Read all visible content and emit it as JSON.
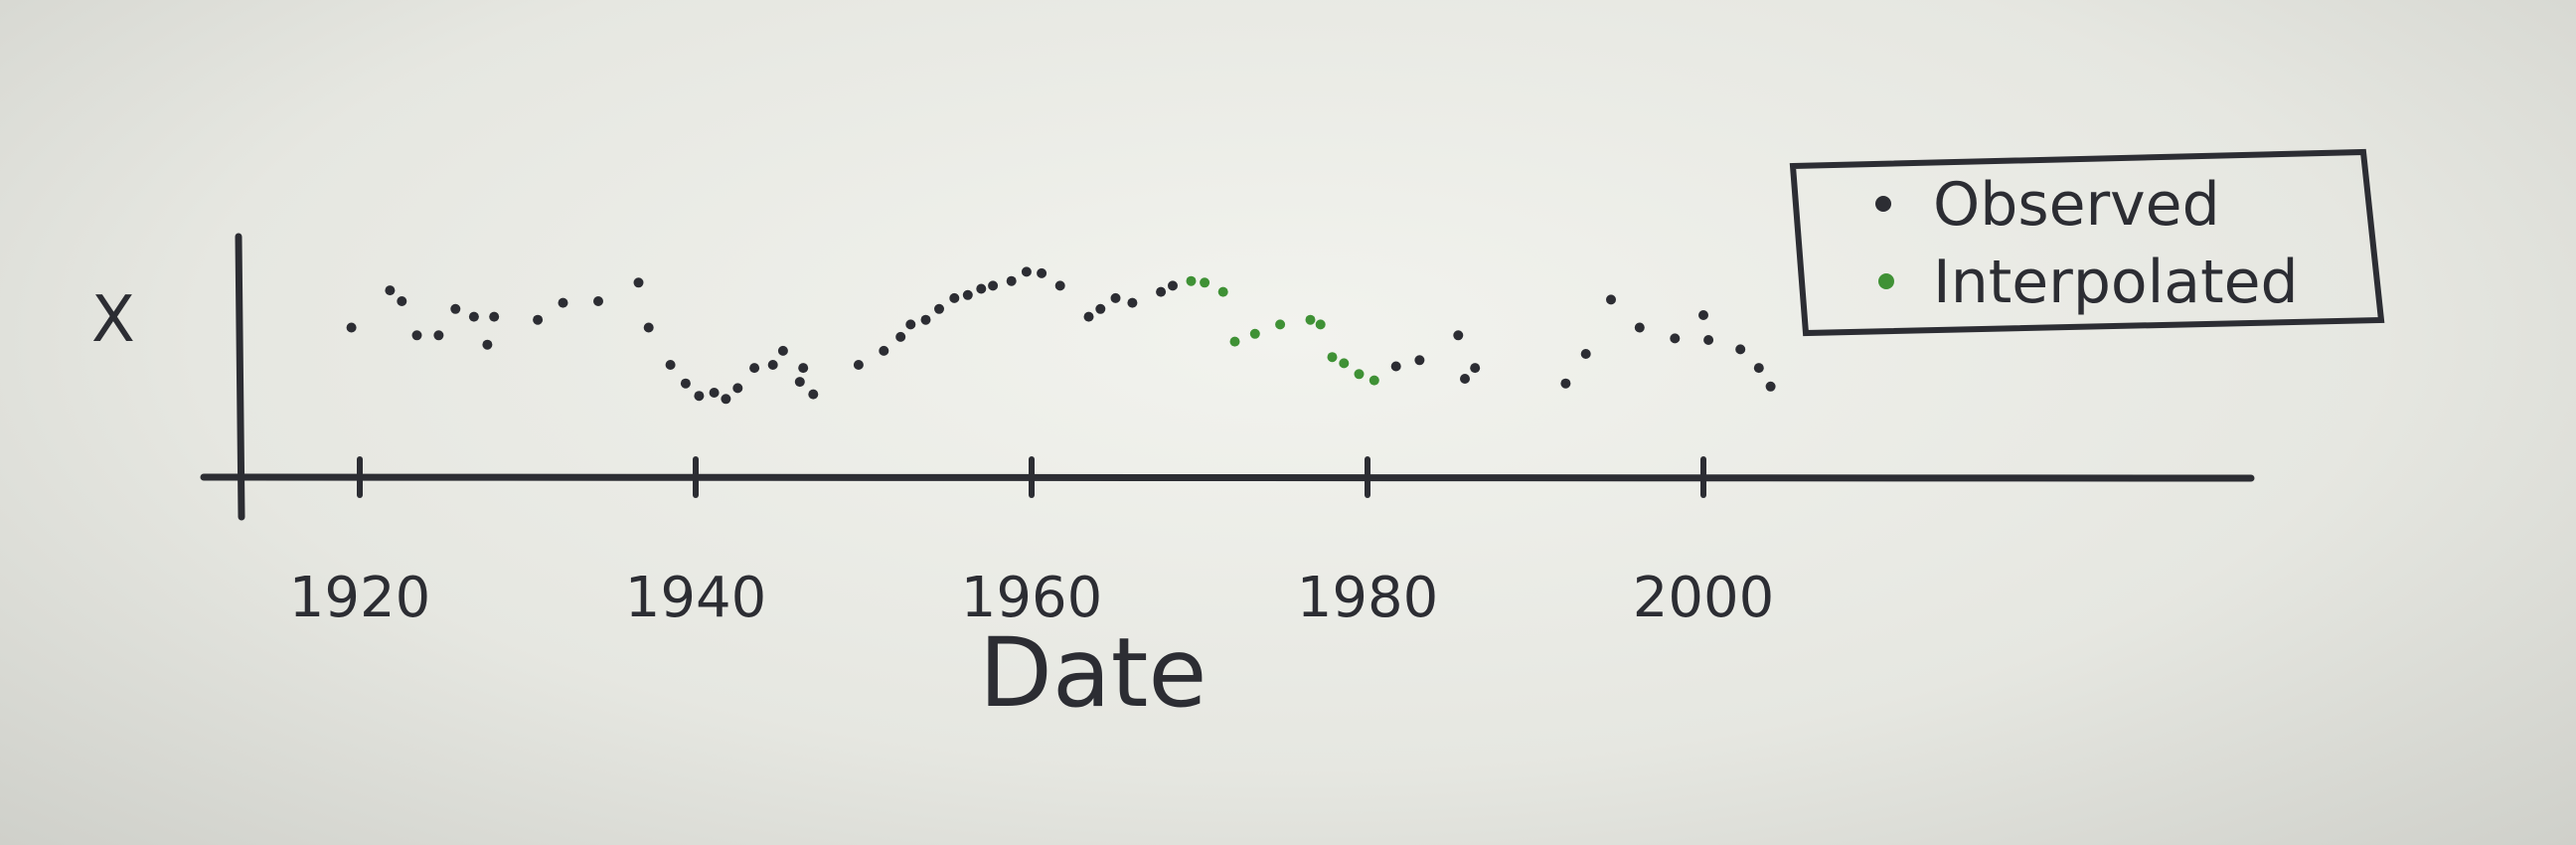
{
  "chart_data": {
    "type": "scatter",
    "xlabel": "Date",
    "ylabel": "X",
    "xlim": [
      1913,
      2033
    ],
    "ylim": [
      0,
      10
    ],
    "xticks": [
      1920,
      1940,
      1960,
      1980,
      2000
    ],
    "xtick_labels": [
      "1920",
      "1940",
      "1960",
      "1980",
      "2000"
    ],
    "grid": false,
    "legend_position": "top-right",
    "series": [
      {
        "name": "Observed",
        "color": "#2c2d33",
        "points": [
          [
            1919.5,
            5.8
          ],
          [
            1921.8,
            8.2
          ],
          [
            1922.5,
            7.5
          ],
          [
            1923.4,
            5.3
          ],
          [
            1924.7,
            5.3
          ],
          [
            1925.7,
            7.0
          ],
          [
            1926.8,
            6.5
          ],
          [
            1927.6,
            4.7
          ],
          [
            1928.0,
            6.5
          ],
          [
            1930.6,
            6.3
          ],
          [
            1932.1,
            7.4
          ],
          [
            1934.2,
            7.5
          ],
          [
            1936.6,
            8.7
          ],
          [
            1937.2,
            5.8
          ],
          [
            1938.5,
            3.4
          ],
          [
            1939.4,
            2.2
          ],
          [
            1940.2,
            1.4
          ],
          [
            1941.1,
            1.6
          ],
          [
            1941.8,
            1.2
          ],
          [
            1942.5,
            1.9
          ],
          [
            1943.5,
            3.2
          ],
          [
            1944.6,
            3.4
          ],
          [
            1945.2,
            4.3
          ],
          [
            1946.2,
            2.3
          ],
          [
            1946.4,
            3.2
          ],
          [
            1947.0,
            1.5
          ],
          [
            1949.7,
            3.4
          ],
          [
            1951.2,
            4.3
          ],
          [
            1952.2,
            5.2
          ],
          [
            1952.8,
            6.0
          ],
          [
            1953.7,
            6.3
          ],
          [
            1954.5,
            7.0
          ],
          [
            1955.4,
            7.7
          ],
          [
            1956.2,
            7.9
          ],
          [
            1957.0,
            8.3
          ],
          [
            1957.7,
            8.5
          ],
          [
            1958.8,
            8.8
          ],
          [
            1959.7,
            9.4
          ],
          [
            1960.6,
            9.3
          ],
          [
            1961.7,
            8.5
          ],
          [
            1963.4,
            6.5
          ],
          [
            1964.1,
            7.0
          ],
          [
            1965.0,
            7.7
          ],
          [
            1966.0,
            7.4
          ],
          [
            1967.7,
            8.1
          ],
          [
            1968.4,
            8.5
          ],
          [
            1981.7,
            3.3
          ],
          [
            1983.1,
            3.7
          ],
          [
            1985.4,
            5.3
          ],
          [
            1985.8,
            2.5
          ],
          [
            1986.4,
            3.2
          ],
          [
            1991.8,
            2.2
          ],
          [
            1993.0,
            4.1
          ],
          [
            1994.5,
            7.6
          ],
          [
            1996.2,
            5.8
          ],
          [
            1998.3,
            5.1
          ],
          [
            2000.0,
            6.6
          ],
          [
            2000.3,
            5.0
          ],
          [
            2002.2,
            4.4
          ],
          [
            2003.3,
            3.2
          ],
          [
            2004.0,
            2.0
          ]
        ]
      },
      {
        "name": "Interpolated",
        "color": "#3f9135",
        "points": [
          [
            1969.5,
            8.8
          ],
          [
            1970.3,
            8.7
          ],
          [
            1971.4,
            8.1
          ],
          [
            1972.1,
            4.9
          ],
          [
            1973.3,
            5.4
          ],
          [
            1974.8,
            6.0
          ],
          [
            1976.6,
            6.3
          ],
          [
            1977.2,
            6.0
          ],
          [
            1977.9,
            3.9
          ],
          [
            1978.6,
            3.5
          ],
          [
            1979.5,
            2.8
          ],
          [
            1980.4,
            2.4
          ]
        ]
      }
    ]
  }
}
